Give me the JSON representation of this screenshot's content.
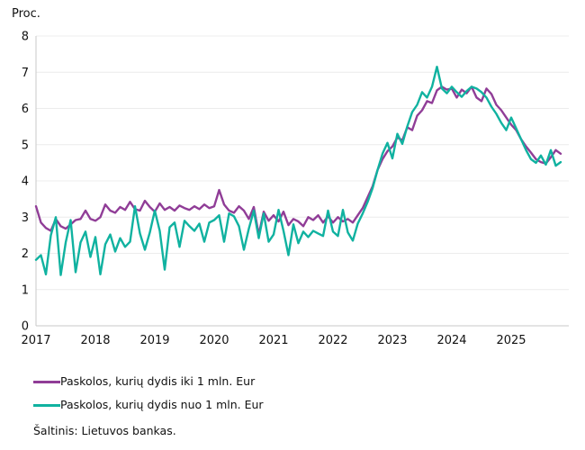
{
  "y_axis_title": "Proc.",
  "source_text": "Šaltinis: Lietuvos bankas.",
  "colors": {
    "small_loans_line": "#903d97",
    "large_loans_line": "#10b2a0",
    "gridline": "#ececec",
    "axis": "#c9c9c9"
  },
  "chart_data": {
    "type": "line",
    "title": "",
    "xlabel": "",
    "ylabel": "Proc.",
    "ylim": [
      0,
      8
    ],
    "y_ticks": [
      0,
      1,
      2,
      3,
      4,
      5,
      6,
      7,
      8
    ],
    "x_tick_labels": [
      "2017",
      "2018",
      "2019",
      "2020",
      "2021",
      "2022",
      "2023",
      "2024",
      "2025"
    ],
    "frequency": "monthly",
    "start": "2017-01",
    "end": "2025-11",
    "grid": true,
    "legend_position": "bottom-left",
    "series": [
      {
        "name": "Paskolos, kurių dydis iki 1 mln. Eur",
        "color": "#903d97",
        "values": [
          3.3,
          2.85,
          2.7,
          2.62,
          2.95,
          2.75,
          2.68,
          2.8,
          2.92,
          2.95,
          3.18,
          2.95,
          2.9,
          3.0,
          3.35,
          3.18,
          3.12,
          3.28,
          3.2,
          3.42,
          3.22,
          3.18,
          3.45,
          3.28,
          3.15,
          3.38,
          3.2,
          3.28,
          3.18,
          3.32,
          3.25,
          3.2,
          3.3,
          3.22,
          3.35,
          3.25,
          3.3,
          3.75,
          3.35,
          3.18,
          3.12,
          3.3,
          3.18,
          2.95,
          3.28,
          2.52,
          3.15,
          2.9,
          3.05,
          2.88,
          3.15,
          2.78,
          2.95,
          2.88,
          2.75,
          3.0,
          2.92,
          3.05,
          2.85,
          3.02,
          2.85,
          3.0,
          2.88,
          2.95,
          2.85,
          3.05,
          3.25,
          3.55,
          3.85,
          4.3,
          4.6,
          4.82,
          4.95,
          5.2,
          5.12,
          5.48,
          5.4,
          5.8,
          5.95,
          6.2,
          6.15,
          6.5,
          6.6,
          6.52,
          6.55,
          6.3,
          6.52,
          6.42,
          6.6,
          6.3,
          6.2,
          6.55,
          6.4,
          6.1,
          5.95,
          5.75,
          5.55,
          5.4,
          5.15,
          4.95,
          4.78,
          4.6,
          4.52,
          4.48,
          4.65,
          4.85,
          4.75
        ]
      },
      {
        "name": "Paskolos, kurių dydis nuo 1 mln. Eur",
        "color": "#10b2a0",
        "values": [
          1.82,
          1.95,
          1.42,
          2.5,
          3.0,
          1.4,
          2.3,
          2.92,
          1.48,
          2.3,
          2.6,
          1.9,
          2.45,
          1.42,
          2.25,
          2.52,
          2.05,
          2.42,
          2.18,
          2.32,
          3.3,
          2.55,
          2.1,
          2.58,
          3.18,
          2.62,
          1.55,
          2.72,
          2.85,
          2.18,
          2.9,
          2.75,
          2.62,
          2.82,
          2.32,
          2.85,
          2.92,
          3.05,
          2.32,
          3.1,
          3.02,
          2.75,
          2.1,
          2.68,
          3.18,
          2.42,
          3.1,
          2.32,
          2.52,
          3.2,
          2.62,
          1.95,
          2.8,
          2.28,
          2.6,
          2.45,
          2.62,
          2.55,
          2.48,
          3.18,
          2.6,
          2.48,
          3.2,
          2.58,
          2.35,
          2.82,
          3.1,
          3.42,
          3.8,
          4.3,
          4.75,
          5.05,
          4.62,
          5.3,
          5.02,
          5.5,
          5.9,
          6.1,
          6.45,
          6.3,
          6.6,
          7.15,
          6.55,
          6.42,
          6.6,
          6.45,
          6.32,
          6.48,
          6.6,
          6.55,
          6.45,
          6.3,
          6.05,
          5.85,
          5.6,
          5.4,
          5.75,
          5.45,
          5.15,
          4.85,
          4.6,
          4.5,
          4.7,
          4.45,
          4.85,
          4.42,
          4.52
        ]
      }
    ]
  }
}
